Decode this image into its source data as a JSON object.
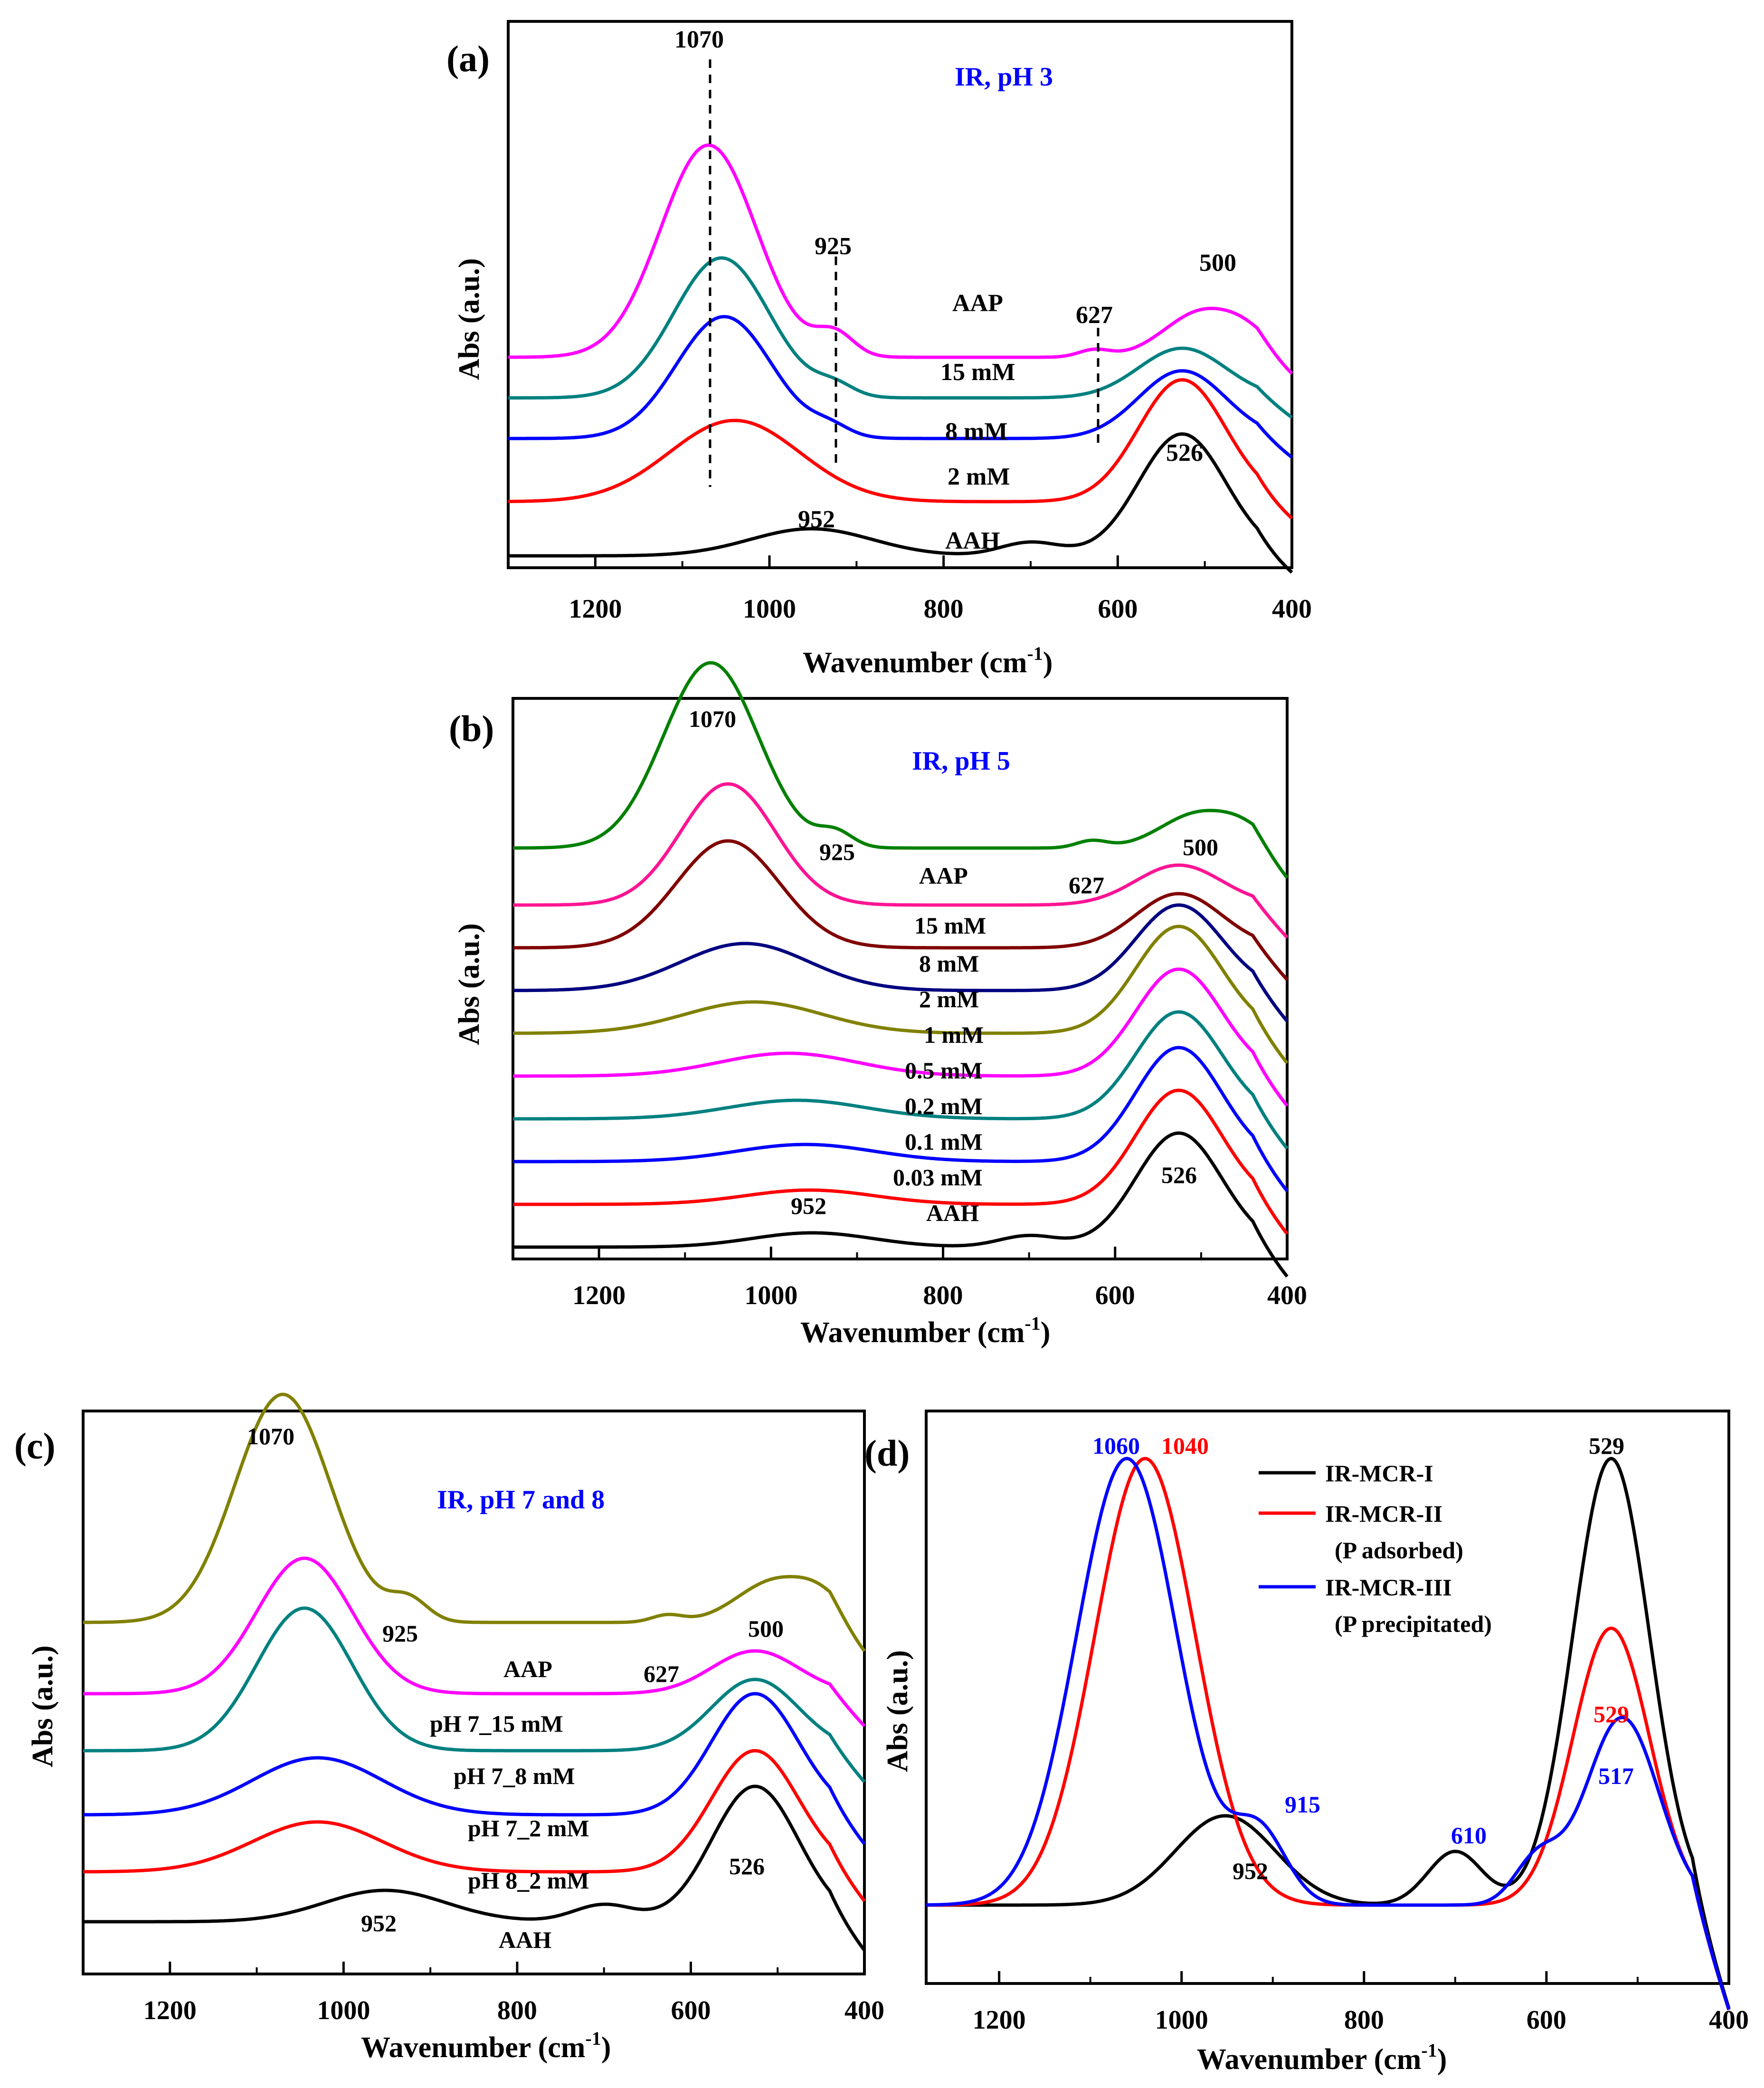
{
  "chart_data": [
    {
      "panel": "(a)",
      "type": "line",
      "title": "IR, pH 3",
      "xlabel": "Wavenumber (cm",
      "xlabel_sup": "-1",
      "xlabel_close": ")",
      "ylabel": "Abs (a.u.)",
      "xlim": [
        1300,
        400
      ],
      "xticks": [
        "1200",
        "1000",
        "800",
        "600",
        "400"
      ],
      "xtick_values": [
        1200,
        1000,
        800,
        600,
        400
      ],
      "series": [
        {
          "name": "AAP",
          "color": "#ff00ff",
          "base": 2.2,
          "peaks": [
            [
              1070,
              2.35,
              55
            ],
            [
              925,
              0.25,
              22
            ],
            [
              627,
              0.08,
              18
            ],
            [
              500,
              0.52,
              45
            ],
            [
              450,
              0.12,
              25
            ]
          ]
        },
        {
          "name": "15 mM",
          "color": "#008080",
          "base": 1.75,
          "peaks": [
            [
              1055,
              1.55,
              55
            ],
            [
              925,
              0.12,
              22
            ],
            [
              526,
              0.55,
              50
            ]
          ]
        },
        {
          "name": "8 mM",
          "color": "#0000ff",
          "base": 1.3,
          "peaks": [
            [
              1052,
              1.35,
              55
            ],
            [
              930,
              0.1,
              22
            ],
            [
              526,
              0.75,
              50
            ]
          ]
        },
        {
          "name": "2 mM",
          "color": "#ff0000",
          "base": 0.6,
          "peaks": [
            [
              1040,
              0.9,
              75
            ],
            [
              526,
              1.35,
              50
            ]
          ]
        },
        {
          "name": "AAH",
          "color": "#000000",
          "base": 0.0,
          "peaks": [
            [
              952,
              0.3,
              70
            ],
            [
              526,
              1.35,
              50
            ],
            [
              700,
              0.15,
              35
            ]
          ]
        }
      ],
      "series_labels": [
        "AAP",
        "15 mM",
        "8 mM",
        "2 mM",
        "AAH"
      ],
      "annotations": [
        "1070",
        "925",
        "627",
        "500",
        "526",
        "952"
      ]
    },
    {
      "panel": "(b)",
      "type": "line",
      "title": "IR, pH 5",
      "xlabel": "Wavenumber (cm",
      "xlabel_sup": "-1",
      "xlabel_close": ")",
      "ylabel": "Abs (a.u.)",
      "xlim": [
        1300,
        400
      ],
      "xticks": [
        "1200",
        "1000",
        "800",
        "600",
        "400"
      ],
      "xtick_values": [
        1200,
        1000,
        800,
        600,
        400
      ],
      "series": [
        {
          "name": "AAP",
          "color": "#008000",
          "base": 2.5,
          "peaks": [
            [
              1070,
              1.3,
              55
            ],
            [
              925,
              0.1,
              20
            ],
            [
              627,
              0.05,
              18
            ],
            [
              500,
              0.25,
              45
            ],
            [
              450,
              0.07,
              25
            ]
          ]
        },
        {
          "name": "15 mM",
          "color": "#ff1493",
          "base": 2.1,
          "peaks": [
            [
              1050,
              0.85,
              55
            ],
            [
              526,
              0.28,
              50
            ]
          ]
        },
        {
          "name": "8 mM",
          "color": "#800000",
          "base": 1.8,
          "peaks": [
            [
              1050,
              0.75,
              60
            ],
            [
              526,
              0.38,
              50
            ]
          ]
        },
        {
          "name": "2 mM",
          "color": "#000080",
          "base": 1.5,
          "peaks": [
            [
              1030,
              0.33,
              75
            ],
            [
              526,
              0.6,
              50
            ]
          ]
        },
        {
          "name": "1 mM",
          "color": "#808000",
          "base": 1.2,
          "peaks": [
            [
              1020,
              0.22,
              80
            ],
            [
              526,
              0.75,
              50
            ]
          ]
        },
        {
          "name": "0.5 mM",
          "color": "#ff00ff",
          "base": 0.9,
          "peaks": [
            [
              980,
              0.16,
              80
            ],
            [
              526,
              0.75,
              50
            ]
          ]
        },
        {
          "name": "0.2 mM",
          "color": "#008080",
          "base": 0.6,
          "peaks": [
            [
              970,
              0.13,
              80
            ],
            [
              526,
              0.75,
              50
            ]
          ]
        },
        {
          "name": "0.1 mM",
          "color": "#0000ff",
          "base": 0.3,
          "peaks": [
            [
              960,
              0.12,
              80
            ],
            [
              526,
              0.8,
              50
            ]
          ]
        },
        {
          "name": "0.03 mM",
          "color": "#ff0000",
          "base": 0.0,
          "peaks": [
            [
              955,
              0.1,
              75
            ],
            [
              526,
              0.8,
              50
            ]
          ]
        },
        {
          "name": "AAH",
          "color": "#000000",
          "base": -0.3,
          "peaks": [
            [
              952,
              0.1,
              70
            ],
            [
              526,
              0.8,
              50
            ],
            [
              700,
              0.08,
              35
            ]
          ]
        }
      ],
      "series_labels": [
        "AAP",
        "15 mM",
        "8 mM",
        "2 mM",
        "1 mM",
        "0.5 mM",
        "0.2 mM",
        "0.1 mM",
        "0.03 mM",
        "AAH"
      ],
      "annotations": [
        "1070",
        "925",
        "627",
        "500",
        "526",
        "952"
      ]
    },
    {
      "panel": "(c)",
      "type": "line",
      "title": "IR, pH 7 and 8",
      "xlabel": "Wavenumber (cm",
      "xlabel_sup": "-1",
      "xlabel_close": ")",
      "ylabel": "Abs (a.u.)",
      "xlim": [
        1300,
        400
      ],
      "xticks": [
        "1200",
        "1000",
        "800",
        "600",
        "400"
      ],
      "xtick_values": [
        1200,
        1000,
        800,
        600,
        400
      ],
      "series": [
        {
          "name": "AAP",
          "color": "#808000",
          "base": 2.1,
          "peaks": [
            [
              1070,
              1.6,
              55
            ],
            [
              925,
              0.15,
              22
            ],
            [
              627,
              0.05,
              18
            ],
            [
              500,
              0.3,
              45
            ],
            [
              450,
              0.1,
              25
            ]
          ]
        },
        {
          "name": "pH 7_15 mM",
          "color": "#ff00ff",
          "base": 1.6,
          "peaks": [
            [
              1045,
              0.95,
              55
            ],
            [
              526,
              0.3,
              50
            ]
          ]
        },
        {
          "name": "pH 7_8 mM",
          "color": "#008080",
          "base": 1.2,
          "peaks": [
            [
              1045,
              1.0,
              55
            ],
            [
              526,
              0.5,
              50
            ]
          ]
        },
        {
          "name": "pH 7_2 mM",
          "color": "#0000ff",
          "base": 0.75,
          "peaks": [
            [
              1030,
              0.4,
              75
            ],
            [
              526,
              0.85,
              50
            ]
          ]
        },
        {
          "name": "pH 8_2 mM",
          "color": "#ff0000",
          "base": 0.35,
          "peaks": [
            [
              1030,
              0.35,
              75
            ],
            [
              526,
              0.85,
              50
            ]
          ]
        },
        {
          "name": "AAH",
          "color": "#000000",
          "base": 0.0,
          "peaks": [
            [
              952,
              0.22,
              70
            ],
            [
              526,
              0.95,
              50
            ],
            [
              700,
              0.12,
              35
            ]
          ]
        }
      ],
      "series_labels": [
        "AAP",
        "pH 7_15 mM",
        "pH 7_8 mM",
        "pH 7_2 mM",
        "pH 8_2 mM",
        "AAH"
      ],
      "annotations": [
        "1070",
        "925",
        "627",
        "500",
        "526",
        "952"
      ]
    },
    {
      "panel": "(d)",
      "type": "line",
      "xlabel": "Wavenumber (cm",
      "xlabel_sup": "-1",
      "xlabel_close": ")",
      "ylabel": "Abs (a.u.)",
      "xlim": [
        1280,
        400
      ],
      "xticks": [
        "1200",
        "1000",
        "800",
        "600",
        "400"
      ],
      "xtick_values": [
        1200,
        1000,
        800,
        600,
        400
      ],
      "legend": "top-right",
      "series": [
        {
          "name": "IR-MCR-I",
          "color": "#000000",
          "base": 0.0,
          "peaks": [
            [
              952,
              0.2,
              55
            ],
            [
              529,
              1.0,
              42
            ],
            [
              700,
              0.12,
              30
            ]
          ]
        },
        {
          "name": "IR-MCR-II",
          "color": "#ff0000",
          "base": 0.0,
          "peaks": [
            [
              1040,
              1.0,
              55
            ],
            [
              529,
              0.62,
              42
            ]
          ]
        },
        {
          "name": "IR-MCR-III",
          "color": "#0000ff",
          "base": 0.0,
          "peaks": [
            [
              1060,
              1.0,
              55
            ],
            [
              915,
              0.16,
              30
            ],
            [
              517,
              0.42,
              40
            ],
            [
              610,
              0.1,
              25
            ]
          ]
        }
      ],
      "legend_entries": [
        "IR-MCR-I",
        "IR-MCR-II",
        "(P adsorbed)",
        "IR-MCR-III",
        "(P precipitated)"
      ],
      "annotations": [
        "1060",
        "1040",
        "529",
        "529",
        "915",
        "517",
        "610",
        "952"
      ]
    }
  ],
  "colors": {
    "black": "#000000",
    "blue": "#0000ff",
    "red": "#ff0000"
  }
}
